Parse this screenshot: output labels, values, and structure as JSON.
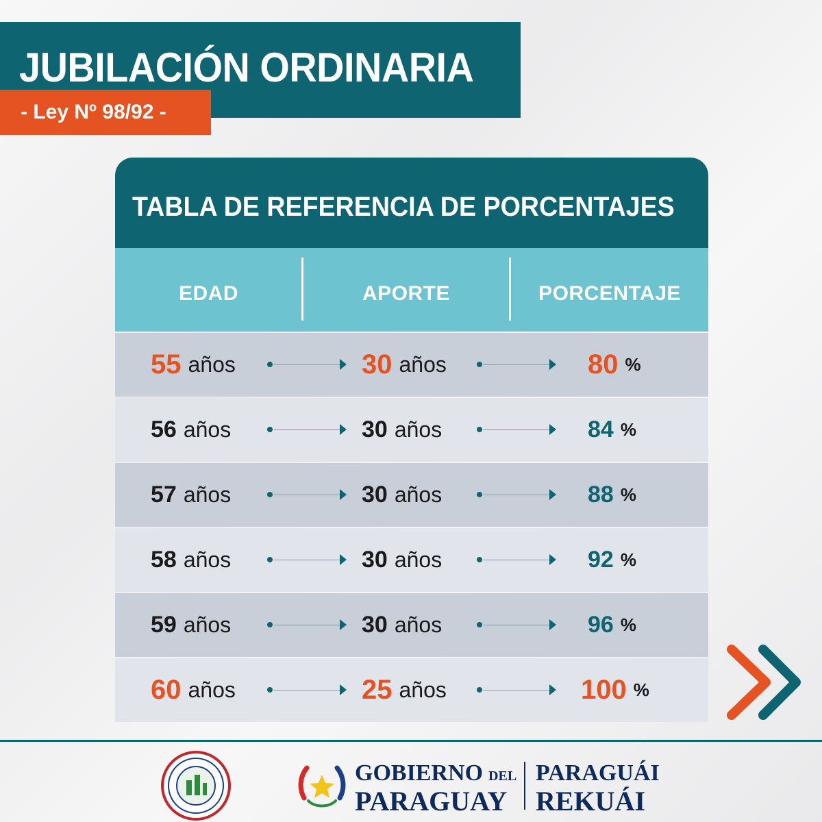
{
  "header": {
    "title": "JUBILACIÓN ORDINARIA",
    "law": "- Ley Nº 98/92 -"
  },
  "table": {
    "title": "TABLA DE REFERENCIA DE PORCENTAJES",
    "columns": [
      "EDAD",
      "APORTE",
      "PORCENTAJE"
    ],
    "unit": "años",
    "pct_unit": "%",
    "rows": [
      {
        "edad": "55",
        "aporte": "30",
        "porcentaje": "80",
        "highlight": true
      },
      {
        "edad": "56",
        "aporte": "30",
        "porcentaje": "84",
        "highlight": false
      },
      {
        "edad": "57",
        "aporte": "30",
        "porcentaje": "88",
        "highlight": false
      },
      {
        "edad": "58",
        "aporte": "30",
        "porcentaje": "92",
        "highlight": false
      },
      {
        "edad": "59",
        "aporte": "30",
        "porcentaje": "96",
        "highlight": false
      },
      {
        "edad": "60",
        "aporte": "25",
        "porcentaje": "100",
        "highlight": true
      }
    ]
  },
  "footer": {
    "gov_line1": "GOBIERNO",
    "gov_del": "DEL",
    "gov_line2": "PARAGUAY",
    "slogan_line1": "PARAGUÁI",
    "slogan_line2": "REKUÁI"
  },
  "icons": {
    "next": "double-chevron-right-icon",
    "seal": "ips-seal-logo",
    "flag": "paraguay-flag-emblem"
  },
  "colors": {
    "teal": "#0e6471",
    "light_teal": "#6dc3cf",
    "orange": "#e55322",
    "row_dark": "#c9cfd8",
    "row_light": "#e1e5eb"
  }
}
